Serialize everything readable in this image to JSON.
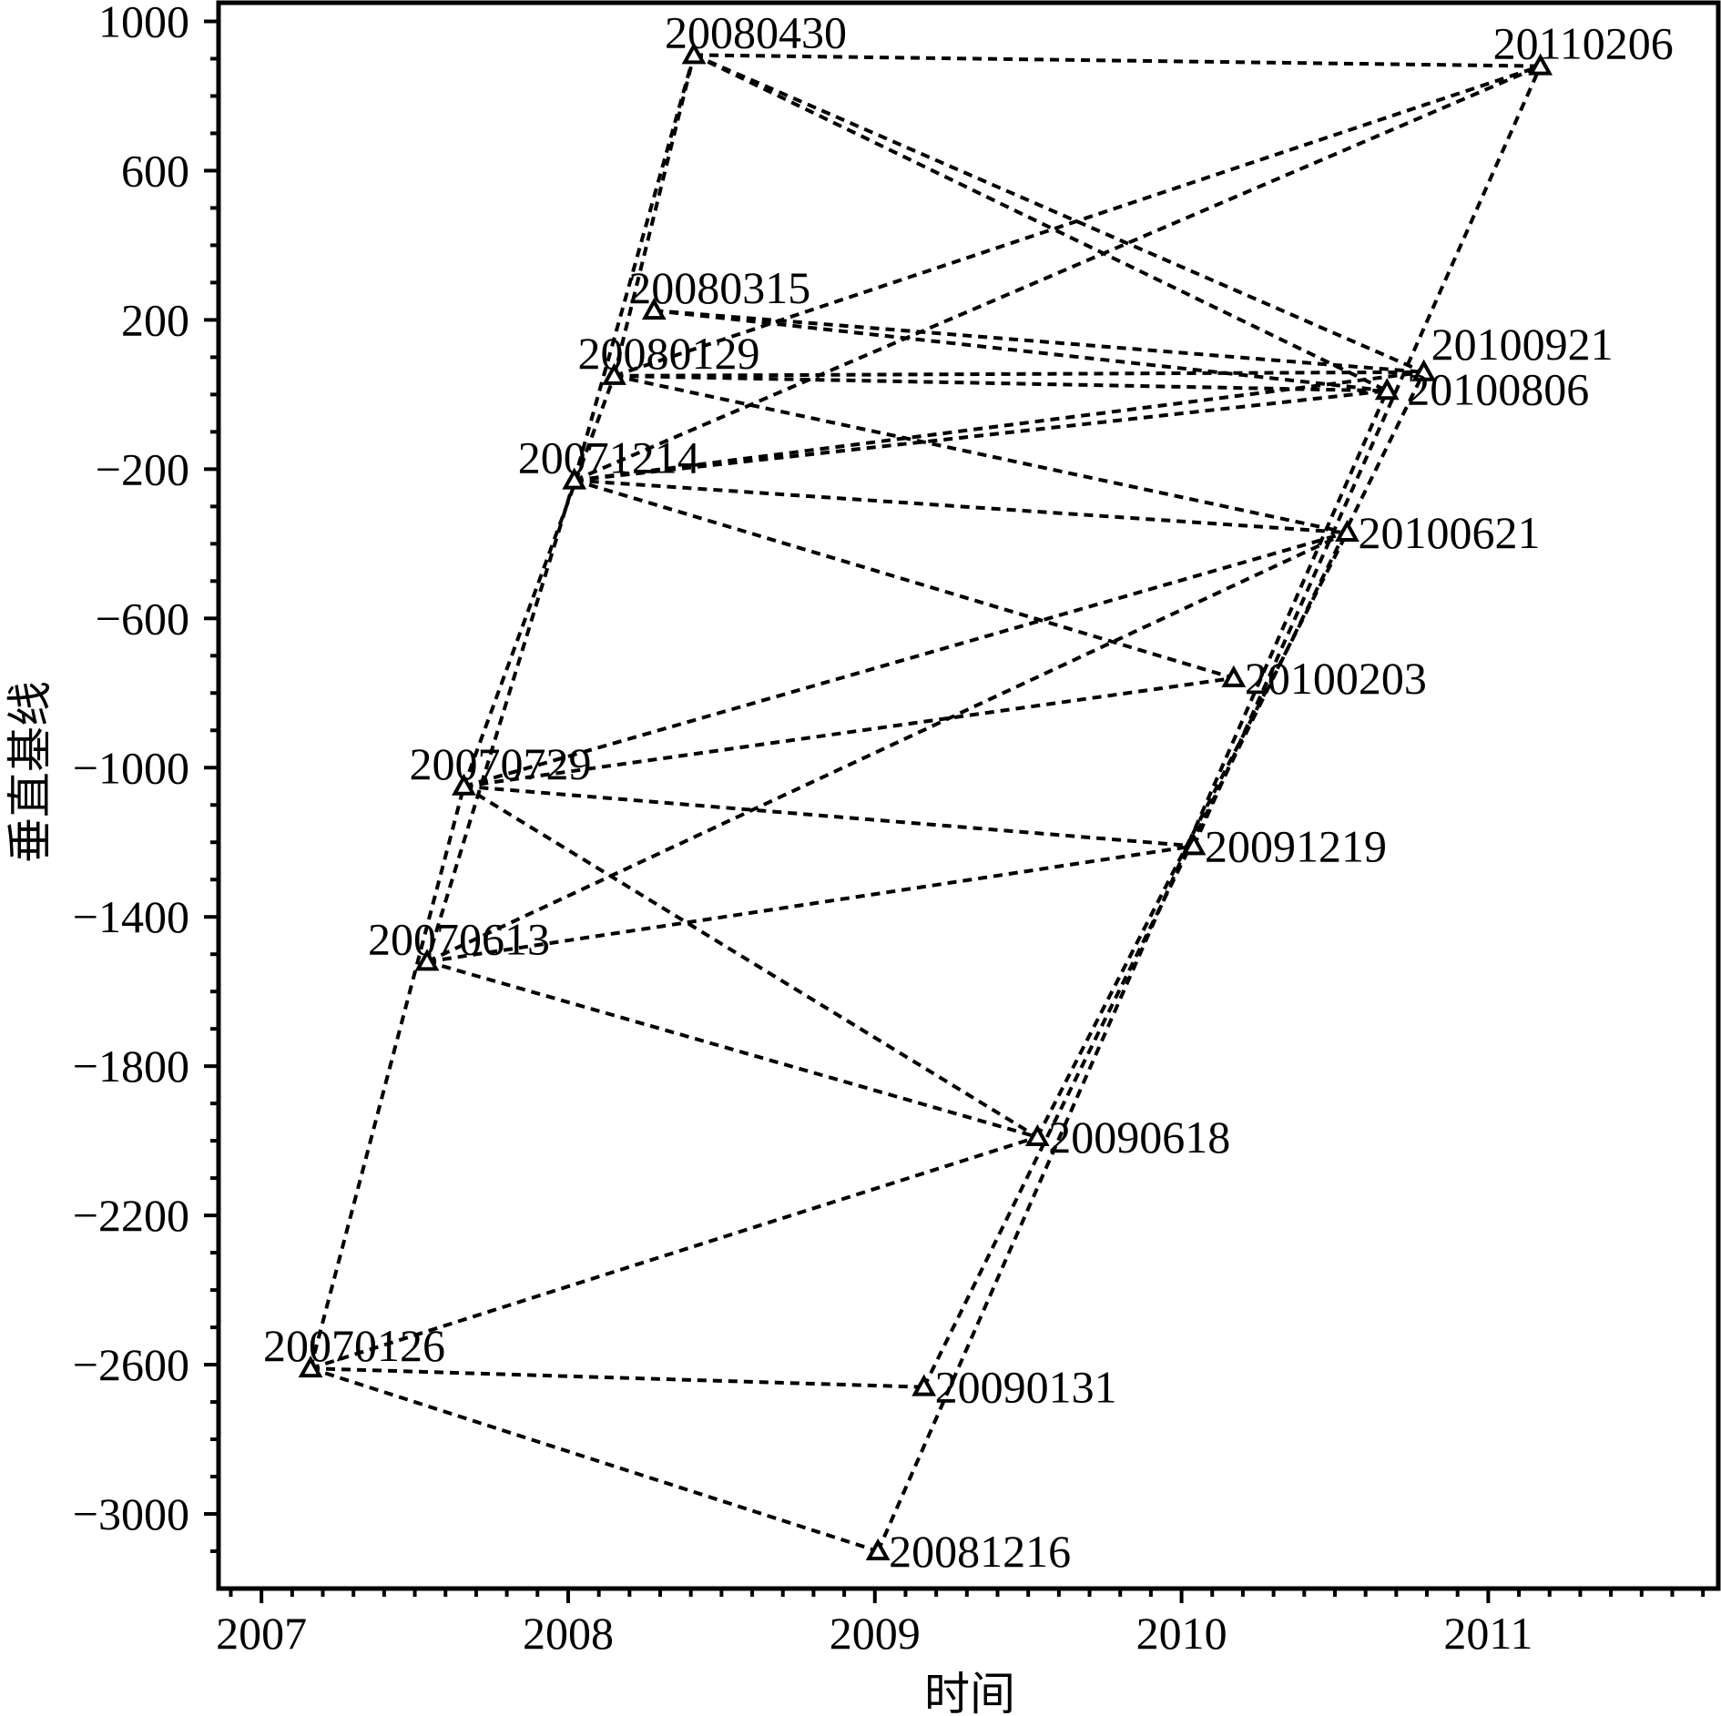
{
  "chart_data": {
    "type": "scatter",
    "title": "",
    "xlabel": "时间",
    "ylabel": "垂直基线",
    "xlim": [
      2006.86,
      2011.75
    ],
    "ylim": [
      -3200,
      1050
    ],
    "x_ticks": [
      "2007",
      "2008",
      "2009",
      "2010",
      "2011"
    ],
    "x_tick_values": [
      2007,
      2008,
      2009,
      2010,
      2011
    ],
    "y_ticks": [
      "1000",
      "600",
      "200",
      "−200",
      "−600",
      "−1000",
      "−1400",
      "−1800",
      "−2200",
      "−2600",
      "−3000"
    ],
    "y_tick_values": [
      1000,
      600,
      200,
      -200,
      -600,
      -1000,
      -1400,
      -1800,
      -2200,
      -2600,
      -3000
    ],
    "grid": false,
    "marker": "triangle",
    "points": [
      {
        "label": "20070126",
        "x": 2007.16,
        "y": -2610
      },
      {
        "label": "20070613",
        "x": 2007.54,
        "y": -1520
      },
      {
        "label": "20070729",
        "x": 2007.66,
        "y": -1050
      },
      {
        "label": "20071214",
        "x": 2008.02,
        "y": -230
      },
      {
        "label": "20080129",
        "x": 2008.15,
        "y": 50
      },
      {
        "label": "20080315",
        "x": 2008.28,
        "y": 225
      },
      {
        "label": "20080430",
        "x": 2008.41,
        "y": 910
      },
      {
        "label": "20081216",
        "x": 2009.01,
        "y": -3100
      },
      {
        "label": "20090131",
        "x": 2009.16,
        "y": -2660
      },
      {
        "label": "20090618",
        "x": 2009.53,
        "y": -1990
      },
      {
        "label": "20091219",
        "x": 2010.04,
        "y": -1210
      },
      {
        "label": "20100203",
        "x": 2010.17,
        "y": -760
      },
      {
        "label": "20100621",
        "x": 2010.54,
        "y": -370
      },
      {
        "label": "20100806",
        "x": 2010.67,
        "y": 10
      },
      {
        "label": "20100921",
        "x": 2010.79,
        "y": 60
      },
      {
        "label": "20110206",
        "x": 2011.17,
        "y": 880
      }
    ],
    "edges": [
      [
        "20070126",
        "20070729"
      ],
      [
        "20070126",
        "20081216"
      ],
      [
        "20070126",
        "20090131"
      ],
      [
        "20070126",
        "20090618"
      ],
      [
        "20070613",
        "20071214"
      ],
      [
        "20070613",
        "20090618"
      ],
      [
        "20070613",
        "20091219"
      ],
      [
        "20070613",
        "20100621"
      ],
      [
        "20070729",
        "20080129"
      ],
      [
        "20070729",
        "20090618"
      ],
      [
        "20070729",
        "20091219"
      ],
      [
        "20070729",
        "20100203"
      ],
      [
        "20070729",
        "20100621"
      ],
      [
        "20071214",
        "20080430"
      ],
      [
        "20071214",
        "20100203"
      ],
      [
        "20071214",
        "20100621"
      ],
      [
        "20071214",
        "20100806"
      ],
      [
        "20071214",
        "20100921"
      ],
      [
        "20071214",
        "20110206"
      ],
      [
        "20080129",
        "20080430"
      ],
      [
        "20080129",
        "20100621"
      ],
      [
        "20080129",
        "20100806"
      ],
      [
        "20080129",
        "20100921"
      ],
      [
        "20080129",
        "20110206"
      ],
      [
        "20080315",
        "20100806"
      ],
      [
        "20080315",
        "20100921"
      ],
      [
        "20080430",
        "20100806"
      ],
      [
        "20080430",
        "20100921"
      ],
      [
        "20080430",
        "20110206"
      ],
      [
        "20081216",
        "20100806"
      ],
      [
        "20090131",
        "20100921"
      ],
      [
        "20090618",
        "20100621"
      ],
      [
        "20091219",
        "20110206"
      ]
    ]
  }
}
